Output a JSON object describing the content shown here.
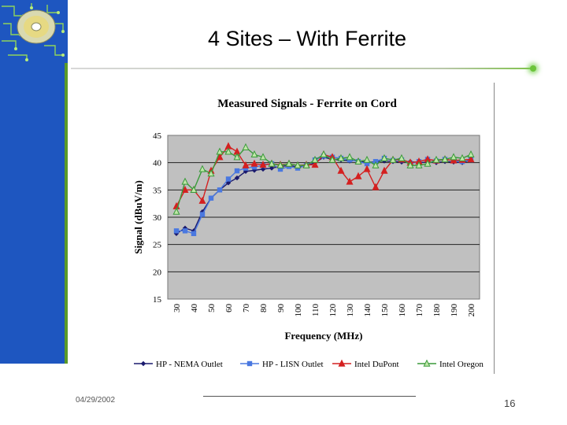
{
  "slide": {
    "title": "4 Sites – With Ferrite",
    "date": "04/29/2002",
    "page_number": "16"
  },
  "colors": {
    "sidebar": "#1e56c0",
    "sidebar_edge": "#5b9a28",
    "plot_bg": "#c0c0c0"
  },
  "chart_data": {
    "type": "line",
    "title": "Measured Signals - Ferrite on Cord",
    "xlabel": "Frequency (MHz)",
    "ylabel": "Signal (dBuV/m)",
    "ylim": [
      15,
      45
    ],
    "yticks": [
      15,
      20,
      25,
      30,
      35,
      40,
      45
    ],
    "xlim": [
      30,
      200
    ],
    "xticks": [
      30,
      40,
      50,
      60,
      70,
      80,
      90,
      100,
      110,
      120,
      130,
      140,
      150,
      160,
      170,
      180,
      190,
      200
    ],
    "grid": "horizontal",
    "legend_position": "bottom",
    "series": [
      {
        "name": "HP - NEMA Outlet",
        "color": "#1a1a6e",
        "marker": "diamond",
        "x": [
          30,
          35,
          40,
          45,
          50,
          55,
          60,
          65,
          70,
          75,
          80,
          85,
          90,
          95,
          100,
          105,
          110,
          115,
          120,
          125,
          130,
          135,
          140,
          145,
          150,
          155,
          160,
          165,
          170,
          175,
          180,
          185,
          190,
          195,
          200
        ],
        "values": [
          27.0,
          28.0,
          27.5,
          31.0,
          33.5,
          35.0,
          36.3,
          37.2,
          38.4,
          38.6,
          38.8,
          39.0,
          39.3,
          39.5,
          39.2,
          39.4,
          40.0,
          41.0,
          40.6,
          40.5,
          40.3,
          40.4,
          40.0,
          40.2,
          40.3,
          40.2,
          40.1,
          40.2,
          40.0,
          40.1,
          40.0,
          40.2,
          40.1,
          40.0,
          40.5
        ]
      },
      {
        "name": "HP - LISN Outlet",
        "color": "#4a78e0",
        "marker": "square",
        "x": [
          30,
          35,
          40,
          45,
          50,
          55,
          60,
          65,
          70,
          75,
          80,
          85,
          90,
          95,
          100,
          105,
          110,
          115,
          120,
          125,
          130,
          135,
          140,
          145,
          150,
          155,
          160,
          165,
          170,
          175,
          180,
          185,
          190,
          195,
          200
        ],
        "values": [
          27.5,
          27.5,
          27.0,
          30.5,
          33.5,
          35.0,
          37.0,
          38.5,
          39.0,
          39.2,
          39.5,
          39.8,
          38.8,
          39.3,
          39.0,
          39.5,
          40.5,
          41.2,
          41.0,
          40.8,
          40.5,
          40.2,
          39.8,
          40.2,
          40.8,
          40.4,
          40.5,
          39.8,
          40.2,
          40.6,
          40.3,
          40.6,
          40.4,
          40.2,
          40.5
        ]
      },
      {
        "name": "Intel DuPont",
        "color": "#d42020",
        "marker": "triangle",
        "x": [
          30,
          35,
          40,
          45,
          50,
          55,
          60,
          65,
          70,
          75,
          80,
          85,
          90,
          95,
          100,
          105,
          110,
          115,
          120,
          125,
          130,
          135,
          140,
          145,
          150,
          155,
          160,
          165,
          170,
          175,
          180,
          185,
          190,
          195,
          200
        ],
        "values": [
          32.0,
          35.0,
          35.0,
          33.0,
          38.5,
          41.0,
          43.0,
          42.0,
          39.5,
          39.8,
          39.6,
          39.8,
          39.6,
          39.8,
          39.5,
          39.6,
          39.6,
          41.5,
          41.0,
          38.5,
          36.5,
          37.5,
          38.8,
          35.5,
          38.5,
          40.5,
          40.6,
          40.0,
          40.2,
          40.6,
          40.4,
          40.6,
          40.4,
          40.5,
          40.6
        ]
      },
      {
        "name": "Intel Oregon",
        "color": "#3a9a3a",
        "marker": "triangle",
        "x": [
          30,
          35,
          40,
          45,
          50,
          55,
          60,
          65,
          70,
          75,
          80,
          85,
          90,
          95,
          100,
          105,
          110,
          115,
          120,
          125,
          130,
          135,
          140,
          145,
          150,
          155,
          160,
          165,
          170,
          175,
          180,
          185,
          190,
          195,
          200
        ],
        "values": [
          31.0,
          36.5,
          35.0,
          38.8,
          38.0,
          42.0,
          42.0,
          41.0,
          42.8,
          41.5,
          41.0,
          39.8,
          39.5,
          39.8,
          39.5,
          39.5,
          40.5,
          41.5,
          40.5,
          40.8,
          41.0,
          40.2,
          40.5,
          39.5,
          40.8,
          40.5,
          40.8,
          39.5,
          39.5,
          39.8,
          40.5,
          40.6,
          41.0,
          40.8,
          41.5
        ]
      }
    ]
  }
}
